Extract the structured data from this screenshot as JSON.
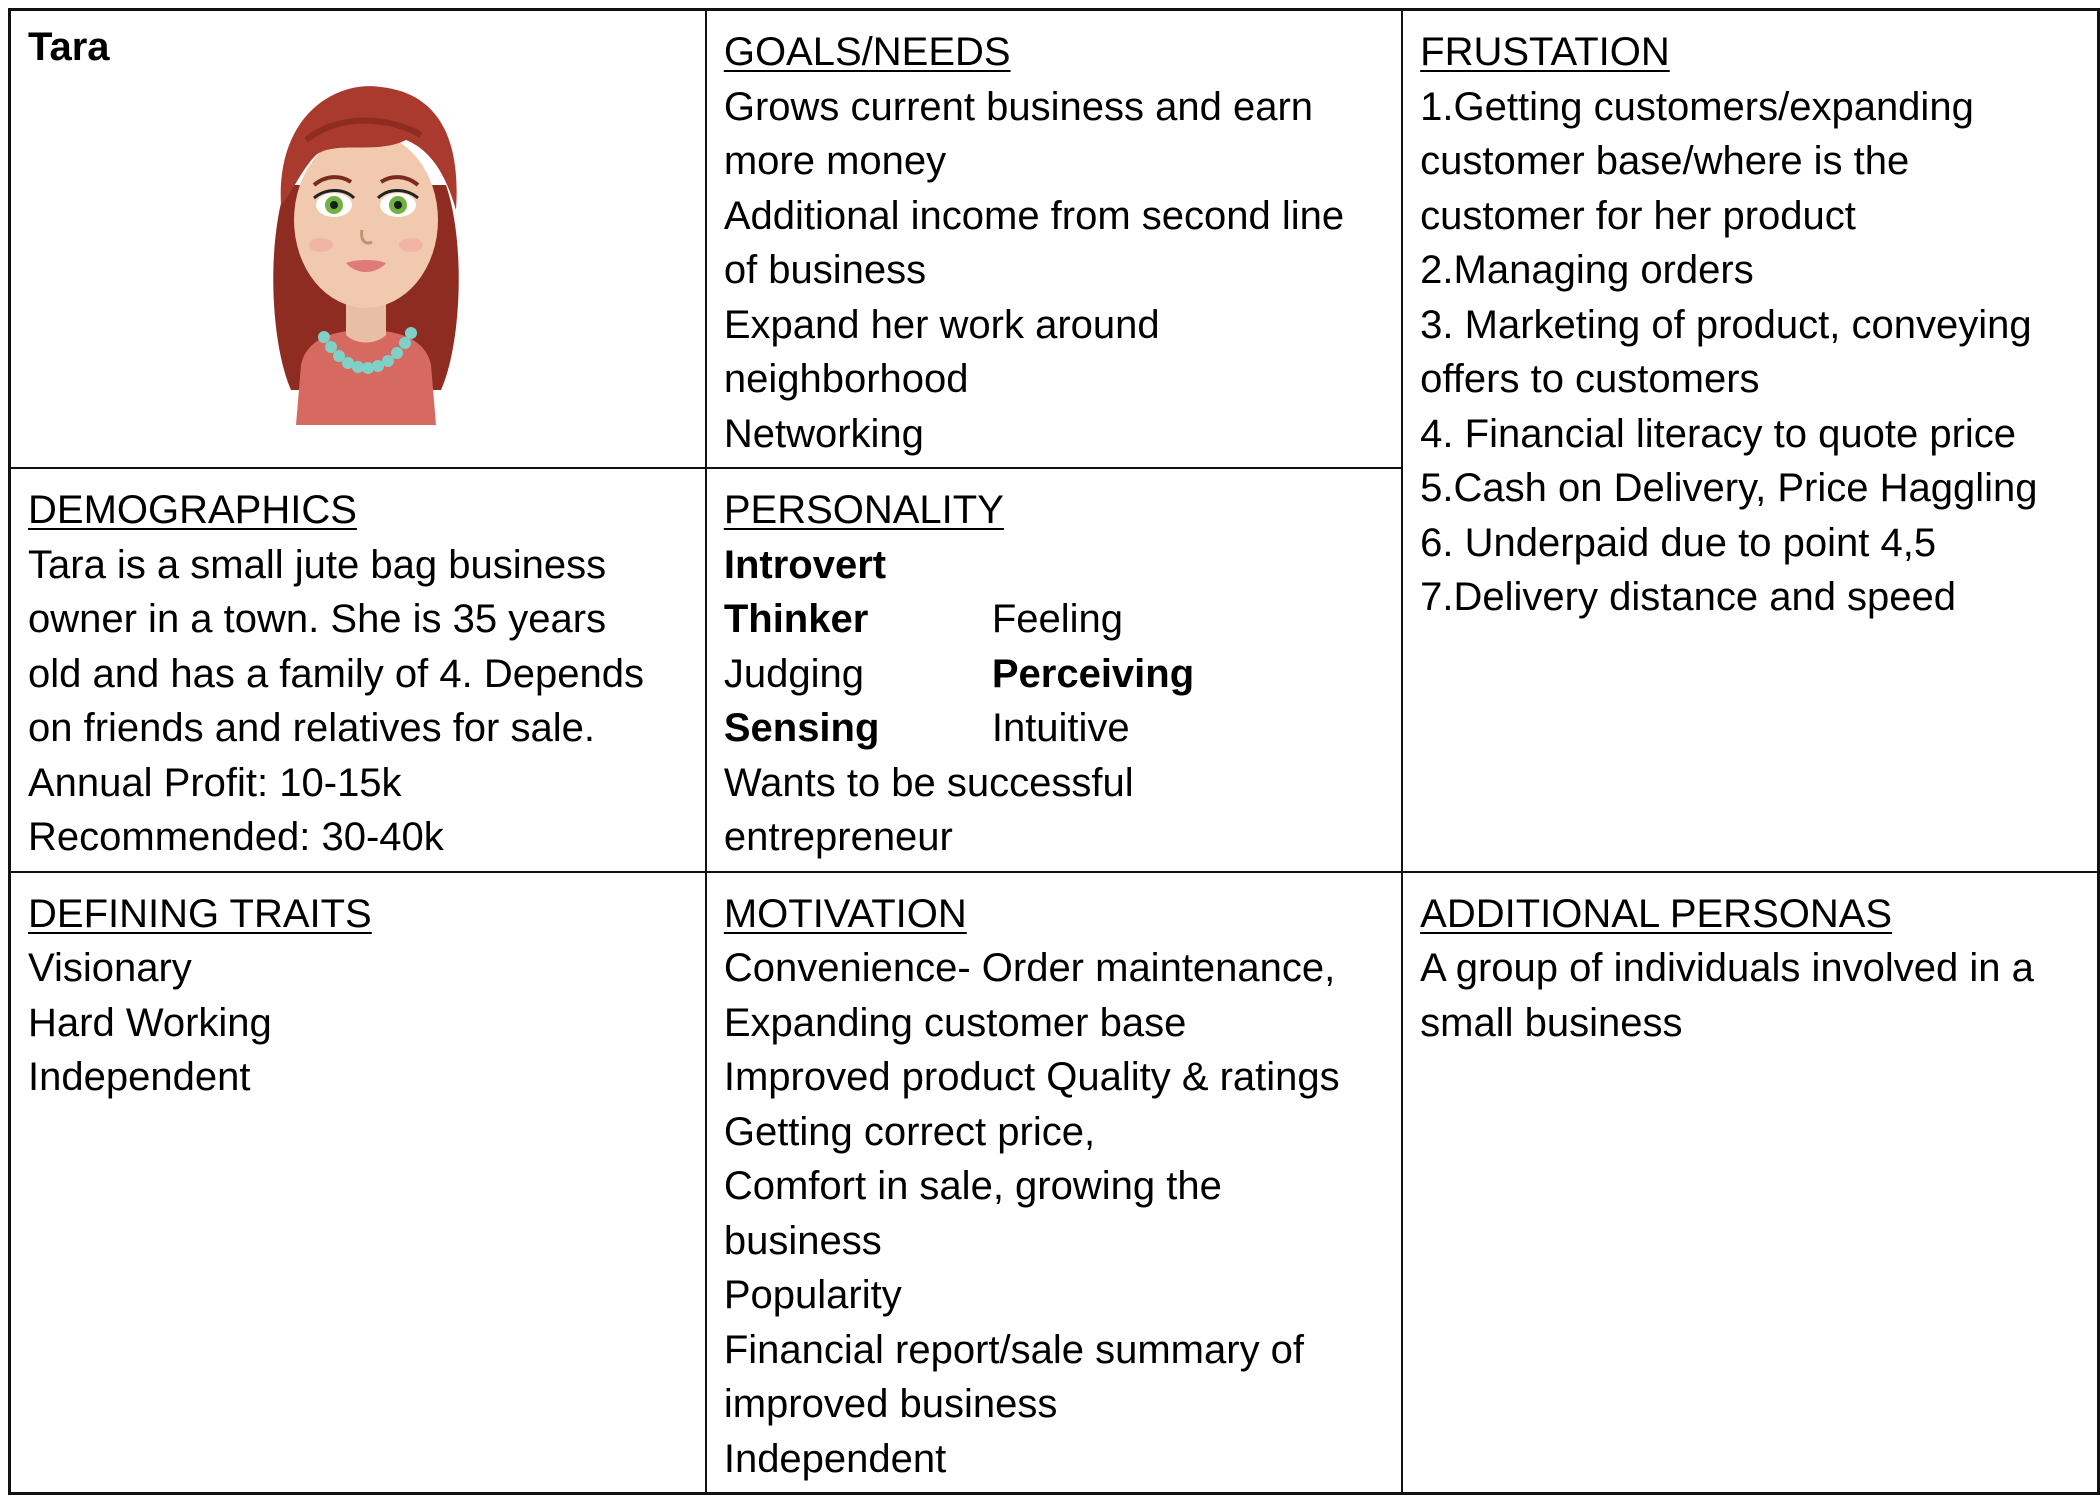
{
  "persona": {
    "name": "Tara",
    "avatar_icon": "woman-avatar-icon"
  },
  "goals": {
    "heading": "GOALS/NEEDS",
    "lines": [
      "Grows current business and earn",
      "more money",
      "Additional income from second line",
      "of business",
      "Expand her work around",
      "neighborhood",
      "Networking"
    ]
  },
  "frustration": {
    "heading": "FRUSTATION",
    "lines": [
      "1.Getting customers/expanding",
      "customer base/where is the",
      "customer for her product",
      "2.Managing orders",
      "3. Marketing of product, conveying",
      "offers to customers",
      "4. Financial literacy to quote price",
      "5.Cash on Delivery, Price Haggling",
      "6. Underpaid due to point 4,5",
      "7.Delivery distance and speed"
    ]
  },
  "demographics": {
    "heading": "DEMOGRAPHICS",
    "lines": [
      "Tara is a small jute bag business",
      "owner in a town. She is 35 years",
      "old and has a family of 4. Depends",
      "on friends and relatives for sale.",
      "Annual Profit: 10-15k",
      "Recommended: 30-40k"
    ]
  },
  "personality": {
    "heading": "PERSONALITY",
    "introvert": "Introvert",
    "pairs": [
      {
        "left": "Thinker",
        "right": "Feeling",
        "left_bold": true,
        "right_bold": false
      },
      {
        "left": "Judging",
        "right": "Perceiving",
        "left_bold": false,
        "right_bold": true
      },
      {
        "left": "Sensing",
        "right": "Intuitive",
        "left_bold": true,
        "right_bold": false
      }
    ],
    "lines": [
      "Wants to be successful",
      "entrepreneur"
    ]
  },
  "traits": {
    "heading": "DEFINING TRAITS",
    "lines": [
      "Visionary",
      "Hard Working",
      "Independent"
    ]
  },
  "motivation": {
    "heading": "MOTIVATION",
    "lines": [
      "Convenience- Order maintenance,",
      "Expanding customer base",
      "Improved product Quality & ratings",
      "Getting correct price,",
      "Comfort in sale, growing the",
      "business",
      "Popularity",
      "Financial report/sale summary of",
      "improved business",
      "Independent"
    ]
  },
  "additional": {
    "heading": "ADDITIONAL PERSONAS",
    "lines": [
      "A group of individuals involved in a",
      "small business"
    ]
  }
}
